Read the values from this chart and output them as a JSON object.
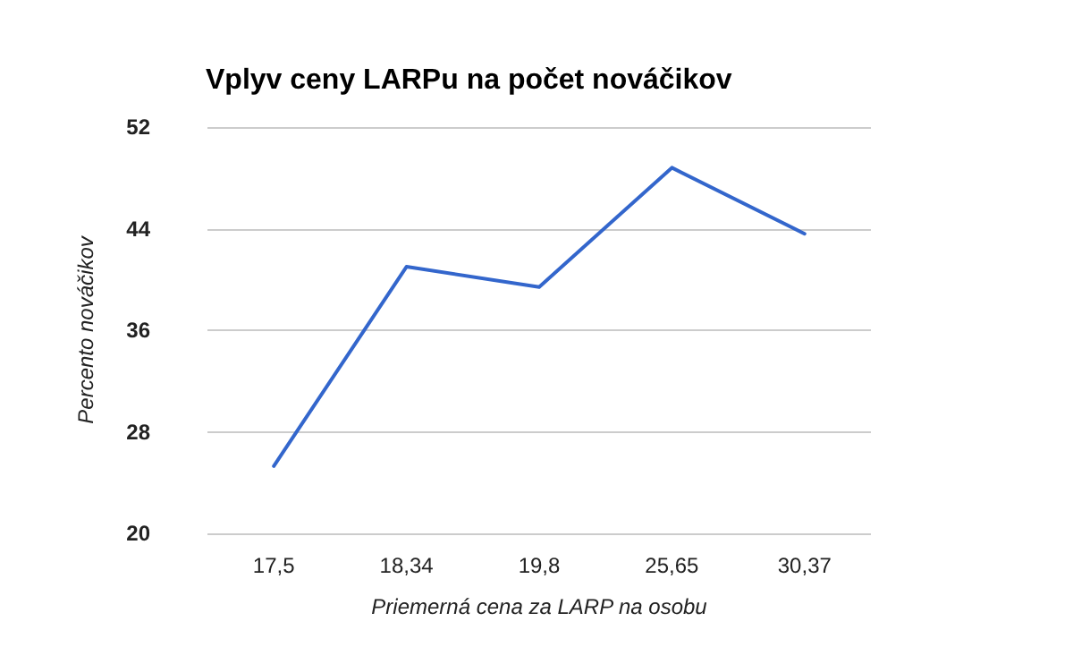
{
  "chart_data": {
    "type": "line",
    "title": "Vplyv ceny LARPu na počet nováčikov",
    "xlabel": "Priemerná cena za LARP na osobu",
    "ylabel": "Percento nováčikov",
    "categories": [
      "17,5",
      "18,34",
      "19,8",
      "25,65",
      "30,37"
    ],
    "series": [
      {
        "color": "#3366cc",
        "values": [
          25.3,
          41.0,
          39.4,
          48.8,
          43.6
        ]
      }
    ],
    "ylim": [
      20,
      52
    ],
    "yticks": [
      20,
      28,
      36,
      44,
      52
    ],
    "grid": "y",
    "marker": "none",
    "line_style": "solid"
  }
}
